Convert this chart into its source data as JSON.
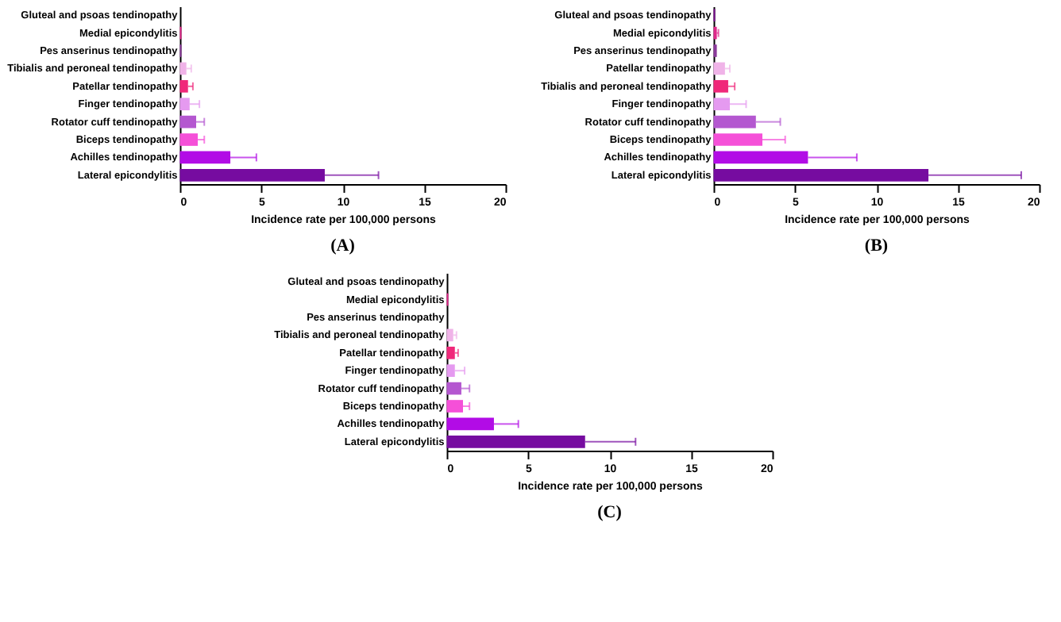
{
  "chart_data": [
    {
      "type": "bar",
      "orientation": "horizontal",
      "title": "(A)",
      "xlabel": "Incidence rate per 100,000 persons",
      "xlim": [
        0,
        20
      ],
      "xticks": [
        0,
        5,
        10,
        15,
        20
      ],
      "grid": false,
      "categories": [
        "Gluteal and psoas tendinopathy",
        "Medial epicondylitis",
        "Pes anserinus tendinopathy",
        "Tibialis and peroneal tendinopathy",
        "Patellar tendinopathy",
        "Finger tendinopathy",
        "Rotator cuff tendinopathy",
        "Biceps tendinopathy",
        "Achilles tendinopathy",
        "Lateral epicondylitis"
      ],
      "values": [
        0.0,
        0.1,
        0.1,
        0.4,
        0.5,
        0.6,
        1.0,
        1.1,
        3.1,
        8.9
      ],
      "errors": [
        null,
        null,
        null,
        [
          0.4,
          0.7
        ],
        [
          0.5,
          0.8
        ],
        [
          0.6,
          1.2
        ],
        [
          1.0,
          1.5
        ],
        [
          1.1,
          1.5
        ],
        [
          3.1,
          4.7
        ],
        [
          8.9,
          12.2
        ]
      ],
      "colors": [
        "#7a0f8f",
        "#e0288a",
        "#8a3a9a",
        "#f0b3e8",
        "#f0287a",
        "#e59af0",
        "#b457d0",
        "#f550d8",
        "#b20ce6",
        "#760ca0"
      ]
    },
    {
      "type": "bar",
      "orientation": "horizontal",
      "title": "(B)",
      "xlabel": "Incidence rate per 100,000 persons",
      "xlim": [
        0,
        20
      ],
      "xticks": [
        0,
        5,
        10,
        15,
        20
      ],
      "grid": false,
      "categories": [
        "Gluteal and psoas tendinopathy",
        "Medial epicondylitis",
        "Pes anserinus tendinopathy",
        "Patellar tendinopathy",
        "Tibialis and peroneal tendinopathy",
        "Finger tendinopathy",
        "Rotator cuff tendinopathy",
        "Biceps tendinopathy",
        "Achilles tendinopathy",
        "Lateral epicondylitis"
      ],
      "values": [
        0.1,
        0.2,
        0.2,
        0.7,
        0.9,
        1.0,
        2.6,
        3.0,
        5.8,
        13.2
      ],
      "errors": [
        null,
        [
          0.2,
          0.3
        ],
        null,
        [
          0.7,
          1.0
        ],
        [
          0.9,
          1.3
        ],
        [
          1.0,
          2.0
        ],
        [
          2.6,
          4.1
        ],
        [
          3.0,
          4.4
        ],
        [
          5.8,
          8.8
        ],
        [
          13.2,
          18.9
        ]
      ],
      "colors": [
        "#7a0f8f",
        "#e0288a",
        "#8a3a9a",
        "#f0b3e8",
        "#f0287a",
        "#e59af0",
        "#b457d0",
        "#f550d8",
        "#b20ce6",
        "#760ca0"
      ]
    },
    {
      "type": "bar",
      "orientation": "horizontal",
      "title": "(C)",
      "xlabel": "Incidence rate per 100,000 persons",
      "xlim": [
        0,
        20
      ],
      "xticks": [
        0,
        5,
        10,
        15,
        20
      ],
      "grid": false,
      "categories": [
        "Gluteal and psoas tendinopathy",
        "Medial epicondylitis",
        "Pes anserinus tendinopathy",
        "Tibialis and peroneal tendinopathy",
        "Patellar tendinopathy",
        "Finger tendinopathy",
        "Rotator cuff tendinopathy",
        "Biceps tendinopathy",
        "Achilles tendinopathy",
        "Lateral epicondylitis"
      ],
      "values": [
        0.0,
        0.1,
        0.0,
        0.4,
        0.5,
        0.5,
        0.9,
        1.0,
        2.9,
        8.5
      ],
      "errors": [
        null,
        null,
        null,
        [
          0.4,
          0.6
        ],
        [
          0.5,
          0.7
        ],
        [
          0.5,
          1.1
        ],
        [
          0.9,
          1.4
        ],
        [
          1.0,
          1.4
        ],
        [
          2.9,
          4.4
        ],
        [
          8.5,
          11.6
        ]
      ],
      "colors": [
        "#7a0f8f",
        "#e0288a",
        "#8a3a9a",
        "#f0b3e8",
        "#f0287a",
        "#e59af0",
        "#b457d0",
        "#f550d8",
        "#b20ce6",
        "#760ca0"
      ]
    }
  ]
}
